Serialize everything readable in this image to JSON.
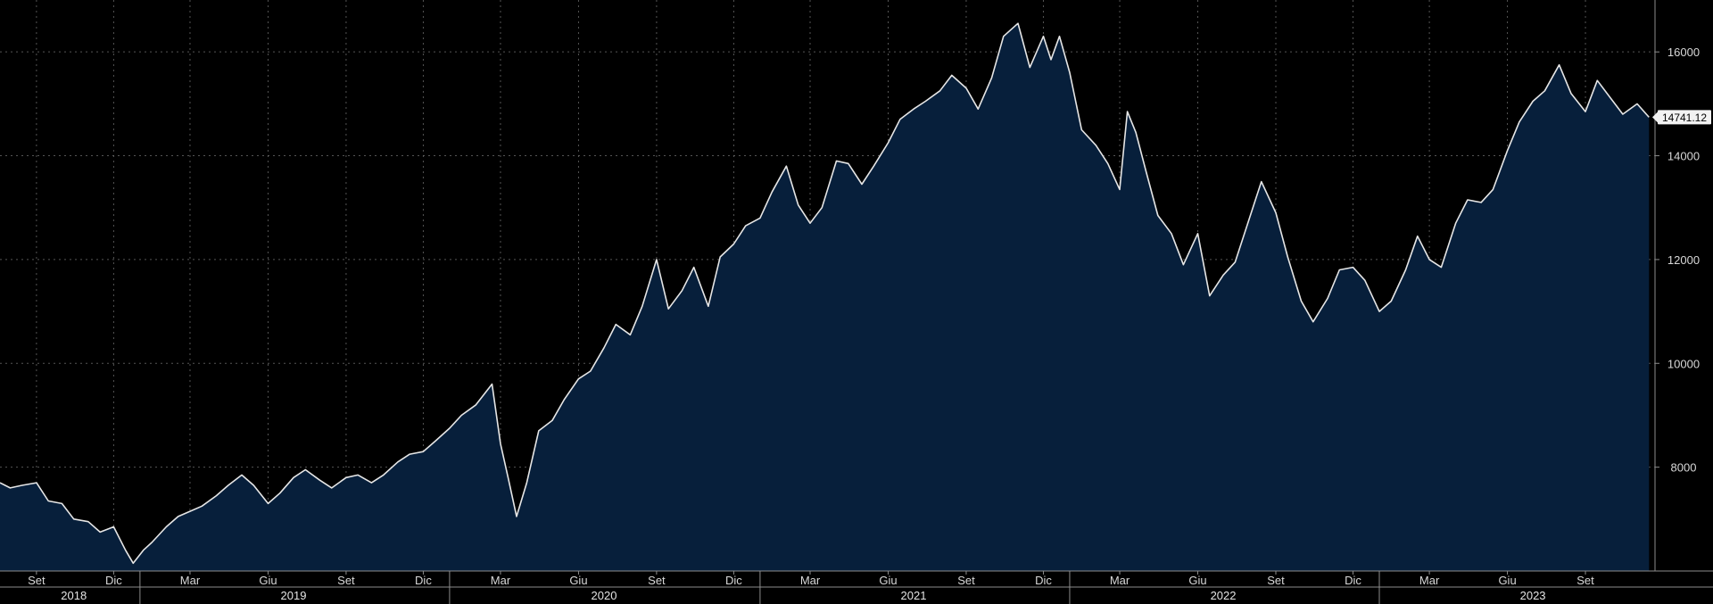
{
  "chart_data": {
    "type": "area",
    "title": "",
    "xlabel": "",
    "ylabel": "",
    "ylim": [
      6000,
      17000
    ],
    "grid": true,
    "legend": "none",
    "last_value_label": "14741.12",
    "colors": {
      "background": "#000000",
      "area_fill": "#071f3b",
      "line": "#e6e6e6",
      "grid": "#6b6b6b",
      "label_box": "#f2f2f2",
      "label_text": "#000000"
    },
    "yticks": [
      8000,
      10000,
      12000,
      14000,
      16000
    ],
    "month_ticks": [
      {
        "x": "2018-09-01",
        "label": "Set"
      },
      {
        "x": "2018-12-01",
        "label": "Dic"
      },
      {
        "x": "2019-03-01",
        "label": "Mar"
      },
      {
        "x": "2019-06-01",
        "label": "Giu"
      },
      {
        "x": "2019-09-01",
        "label": "Set"
      },
      {
        "x": "2019-12-01",
        "label": "Dic"
      },
      {
        "x": "2020-03-01",
        "label": "Mar"
      },
      {
        "x": "2020-06-01",
        "label": "Giu"
      },
      {
        "x": "2020-09-01",
        "label": "Set"
      },
      {
        "x": "2020-12-01",
        "label": "Dic"
      },
      {
        "x": "2021-03-01",
        "label": "Mar"
      },
      {
        "x": "2021-06-01",
        "label": "Giu"
      },
      {
        "x": "2021-09-01",
        "label": "Set"
      },
      {
        "x": "2021-12-01",
        "label": "Dic"
      },
      {
        "x": "2022-03-01",
        "label": "Mar"
      },
      {
        "x": "2022-06-01",
        "label": "Giu"
      },
      {
        "x": "2022-09-01",
        "label": "Set"
      },
      {
        "x": "2022-12-01",
        "label": "Dic"
      },
      {
        "x": "2023-03-01",
        "label": "Mar"
      },
      {
        "x": "2023-06-01",
        "label": "Giu"
      },
      {
        "x": "2023-09-01",
        "label": "Set"
      }
    ],
    "year_labels": [
      {
        "label": "2018",
        "x": "2018-10-15"
      },
      {
        "label": "2019",
        "x": "2019-07-01"
      },
      {
        "label": "2020",
        "x": "2020-07-01"
      },
      {
        "label": "2021",
        "x": "2021-07-01"
      },
      {
        "label": "2022",
        "x": "2022-07-01"
      },
      {
        "label": "2023",
        "x": "2023-07-01"
      }
    ],
    "year_dividers": [
      "2019-01-01",
      "2020-01-01",
      "2021-01-01",
      "2022-01-01",
      "2023-01-01"
    ],
    "series": [
      {
        "values": [
          [
            "2018-07-20",
            7700
          ],
          [
            "2018-08-01",
            7600
          ],
          [
            "2018-08-15",
            7650
          ],
          [
            "2018-09-01",
            7700
          ],
          [
            "2018-09-15",
            7350
          ],
          [
            "2018-10-01",
            7300
          ],
          [
            "2018-10-15",
            7000
          ],
          [
            "2018-11-01",
            6950
          ],
          [
            "2018-11-15",
            6750
          ],
          [
            "2018-12-01",
            6850
          ],
          [
            "2018-12-15",
            6400
          ],
          [
            "2018-12-24",
            6150
          ],
          [
            "2019-01-05",
            6400
          ],
          [
            "2019-01-15",
            6550
          ],
          [
            "2019-02-01",
            6850
          ],
          [
            "2019-02-15",
            7050
          ],
          [
            "2019-03-01",
            7150
          ],
          [
            "2019-03-15",
            7250
          ],
          [
            "2019-04-01",
            7450
          ],
          [
            "2019-04-15",
            7650
          ],
          [
            "2019-05-01",
            7850
          ],
          [
            "2019-05-15",
            7650
          ],
          [
            "2019-06-01",
            7300
          ],
          [
            "2019-06-15",
            7500
          ],
          [
            "2019-07-01",
            7800
          ],
          [
            "2019-07-15",
            7950
          ],
          [
            "2019-08-01",
            7750
          ],
          [
            "2019-08-15",
            7600
          ],
          [
            "2019-09-01",
            7800
          ],
          [
            "2019-09-15",
            7850
          ],
          [
            "2019-10-01",
            7700
          ],
          [
            "2019-10-15",
            7850
          ],
          [
            "2019-11-01",
            8100
          ],
          [
            "2019-11-15",
            8250
          ],
          [
            "2019-12-01",
            8300
          ],
          [
            "2019-12-15",
            8500
          ],
          [
            "2020-01-01",
            8750
          ],
          [
            "2020-01-15",
            9000
          ],
          [
            "2020-02-01",
            9200
          ],
          [
            "2020-02-20",
            9600
          ],
          [
            "2020-03-01",
            8450
          ],
          [
            "2020-03-10",
            7800
          ],
          [
            "2020-03-20",
            7050
          ],
          [
            "2020-04-01",
            7700
          ],
          [
            "2020-04-15",
            8700
          ],
          [
            "2020-05-01",
            8900
          ],
          [
            "2020-05-15",
            9300
          ],
          [
            "2020-06-01",
            9700
          ],
          [
            "2020-06-15",
            9850
          ],
          [
            "2020-07-01",
            10300
          ],
          [
            "2020-07-15",
            10750
          ],
          [
            "2020-08-01",
            10550
          ],
          [
            "2020-08-15",
            11100
          ],
          [
            "2020-09-01",
            12000
          ],
          [
            "2020-09-15",
            11050
          ],
          [
            "2020-10-01",
            11400
          ],
          [
            "2020-10-15",
            11850
          ],
          [
            "2020-11-01",
            11100
          ],
          [
            "2020-11-15",
            12050
          ],
          [
            "2020-12-01",
            12300
          ],
          [
            "2020-12-15",
            12650
          ],
          [
            "2021-01-01",
            12800
          ],
          [
            "2021-01-15",
            13300
          ],
          [
            "2021-02-01",
            13800
          ],
          [
            "2021-02-15",
            13050
          ],
          [
            "2021-03-01",
            12700
          ],
          [
            "2021-03-15",
            13000
          ],
          [
            "2021-04-01",
            13900
          ],
          [
            "2021-04-15",
            13850
          ],
          [
            "2021-05-01",
            13450
          ],
          [
            "2021-05-15",
            13800
          ],
          [
            "2021-06-01",
            14250
          ],
          [
            "2021-06-15",
            14700
          ],
          [
            "2021-07-01",
            14900
          ],
          [
            "2021-07-15",
            15050
          ],
          [
            "2021-08-01",
            15250
          ],
          [
            "2021-08-15",
            15550
          ],
          [
            "2021-09-01",
            15300
          ],
          [
            "2021-09-15",
            14900
          ],
          [
            "2021-10-01",
            15500
          ],
          [
            "2021-10-15",
            16300
          ],
          [
            "2021-11-01",
            16550
          ],
          [
            "2021-11-15",
            15700
          ],
          [
            "2021-12-01",
            16300
          ],
          [
            "2021-12-10",
            15850
          ],
          [
            "2021-12-20",
            16300
          ],
          [
            "2022-01-01",
            15600
          ],
          [
            "2022-01-15",
            14500
          ],
          [
            "2022-02-01",
            14200
          ],
          [
            "2022-02-15",
            13850
          ],
          [
            "2022-03-01",
            13350
          ],
          [
            "2022-03-10",
            14850
          ],
          [
            "2022-03-20",
            14450
          ],
          [
            "2022-04-01",
            13700
          ],
          [
            "2022-04-15",
            12850
          ],
          [
            "2022-05-01",
            12500
          ],
          [
            "2022-05-15",
            11900
          ],
          [
            "2022-06-01",
            12500
          ],
          [
            "2022-06-15",
            11300
          ],
          [
            "2022-07-01",
            11700
          ],
          [
            "2022-07-15",
            11950
          ],
          [
            "2022-08-01",
            12800
          ],
          [
            "2022-08-15",
            13500
          ],
          [
            "2022-09-01",
            12900
          ],
          [
            "2022-09-15",
            12050
          ],
          [
            "2022-10-01",
            11200
          ],
          [
            "2022-10-15",
            10800
          ],
          [
            "2022-11-01",
            11250
          ],
          [
            "2022-11-15",
            11800
          ],
          [
            "2022-12-01",
            11850
          ],
          [
            "2022-12-15",
            11600
          ],
          [
            "2023-01-01",
            11000
          ],
          [
            "2023-01-15",
            11200
          ],
          [
            "2023-02-01",
            11800
          ],
          [
            "2023-02-15",
            12450
          ],
          [
            "2023-03-01",
            12000
          ],
          [
            "2023-03-15",
            11850
          ],
          [
            "2023-04-01",
            12700
          ],
          [
            "2023-04-15",
            13150
          ],
          [
            "2023-05-01",
            13100
          ],
          [
            "2023-05-15",
            13350
          ],
          [
            "2023-06-01",
            14100
          ],
          [
            "2023-06-15",
            14650
          ],
          [
            "2023-07-01",
            15050
          ],
          [
            "2023-07-15",
            15250
          ],
          [
            "2023-08-01",
            15750
          ],
          [
            "2023-08-15",
            15200
          ],
          [
            "2023-09-01",
            14850
          ],
          [
            "2023-09-15",
            15450
          ],
          [
            "2023-10-01",
            15100
          ],
          [
            "2023-10-15",
            14800
          ],
          [
            "2023-11-01",
            15000
          ],
          [
            "2023-11-15",
            14741.12
          ]
        ]
      }
    ]
  }
}
